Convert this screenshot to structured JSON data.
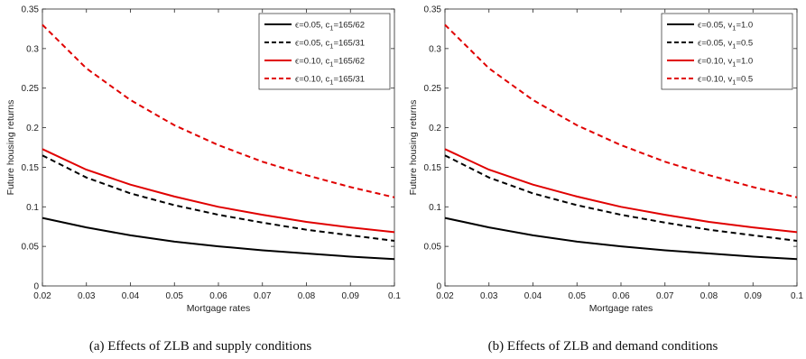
{
  "chart_data": [
    {
      "type": "line",
      "caption": "(a) Effects of ZLB and supply conditions",
      "xlabel": "Mortgage rates",
      "ylabel": "Future housing returns",
      "xlim": [
        0.02,
        0.1
      ],
      "ylim": [
        0,
        0.35
      ],
      "xticks": [
        "0.02",
        "0.03",
        "0.04",
        "0.05",
        "0.06",
        "0.07",
        "0.08",
        "0.09",
        "0.1"
      ],
      "yticks": [
        "0",
        "0.05",
        "0.1",
        "0.15",
        "0.2",
        "0.25",
        "0.3",
        "0.35"
      ],
      "grid": false,
      "legend_position": "top-right",
      "x": [
        0.02,
        0.03,
        0.04,
        0.05,
        0.06,
        0.07,
        0.08,
        0.09,
        0.1
      ],
      "series": [
        {
          "name": "ϵ=0.05, c1=165/62",
          "color": "#000000",
          "dash": "solid",
          "values": [
            0.086,
            0.074,
            0.064,
            0.056,
            0.05,
            0.045,
            0.041,
            0.037,
            0.034
          ]
        },
        {
          "name": "ϵ=0.05, c1=165/31",
          "color": "#000000",
          "dash": "dashed",
          "values": [
            0.165,
            0.137,
            0.117,
            0.102,
            0.09,
            0.08,
            0.071,
            0.064,
            0.057
          ]
        },
        {
          "name": "ϵ=0.10, c1=165/62",
          "color": "#e00000",
          "dash": "solid",
          "values": [
            0.173,
            0.147,
            0.128,
            0.113,
            0.1,
            0.09,
            0.081,
            0.074,
            0.068
          ]
        },
        {
          "name": "ϵ=0.10, c1=165/31",
          "color": "#e00000",
          "dash": "dashed",
          "values": [
            0.33,
            0.275,
            0.235,
            0.203,
            0.178,
            0.157,
            0.14,
            0.125,
            0.112
          ]
        }
      ]
    },
    {
      "type": "line",
      "caption": "(b) Effects of ZLB and demand conditions",
      "xlabel": "Mortgage rates",
      "ylabel": "Future housing returns",
      "xlim": [
        0.02,
        0.1
      ],
      "ylim": [
        0,
        0.35
      ],
      "xticks": [
        "0.02",
        "0.03",
        "0.04",
        "0.05",
        "0.06",
        "0.07",
        "0.08",
        "0.09",
        "0.1"
      ],
      "yticks": [
        "0",
        "0.05",
        "0.1",
        "0.15",
        "0.2",
        "0.25",
        "0.3",
        "0.35"
      ],
      "grid": false,
      "legend_position": "top-right",
      "x": [
        0.02,
        0.03,
        0.04,
        0.05,
        0.06,
        0.07,
        0.08,
        0.09,
        0.1
      ],
      "series": [
        {
          "name": "ϵ=0.05, v1=1.0",
          "color": "#000000",
          "dash": "solid",
          "values": [
            0.086,
            0.074,
            0.064,
            0.056,
            0.05,
            0.045,
            0.041,
            0.037,
            0.034
          ]
        },
        {
          "name": "ϵ=0.05, v1=0.5",
          "color": "#000000",
          "dash": "dashed",
          "values": [
            0.165,
            0.137,
            0.117,
            0.102,
            0.09,
            0.08,
            0.071,
            0.064,
            0.057
          ]
        },
        {
          "name": "ϵ=0.10, v1=1.0",
          "color": "#e00000",
          "dash": "solid",
          "values": [
            0.173,
            0.147,
            0.128,
            0.113,
            0.1,
            0.09,
            0.081,
            0.074,
            0.068
          ]
        },
        {
          "name": "ϵ=0.10, v1=0.5",
          "color": "#e00000",
          "dash": "dashed",
          "values": [
            0.33,
            0.275,
            0.235,
            0.203,
            0.178,
            0.157,
            0.14,
            0.125,
            0.112
          ]
        }
      ]
    }
  ]
}
